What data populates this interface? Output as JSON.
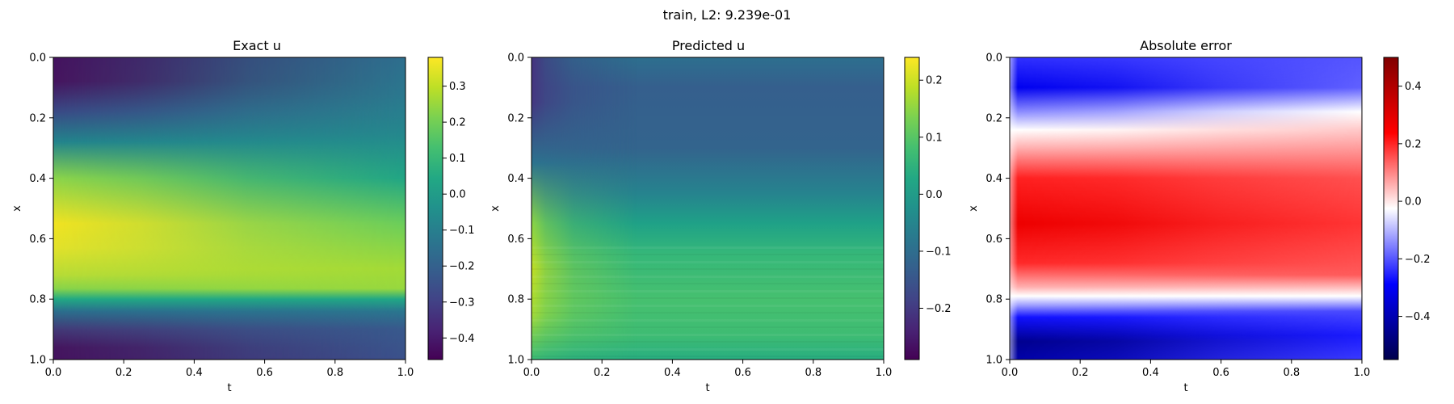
{
  "figure": {
    "suptitle": "train, L2: 9.239e-01"
  },
  "chart_data": [
    {
      "type": "heatmap",
      "title": "Exact u",
      "xlabel": "t",
      "ylabel": "x",
      "xlim": [
        0.0,
        1.0
      ],
      "ylim": [
        1.0,
        0.0
      ],
      "x_ticks": [
        "0.0",
        "0.2",
        "0.4",
        "0.6",
        "0.8",
        "1.0"
      ],
      "y_ticks": [
        "0.0",
        "0.2",
        "0.4",
        "0.6",
        "0.8",
        "1.0"
      ],
      "colormap": "viridis",
      "colorbar": {
        "range": [
          -0.46,
          0.38
        ],
        "ticks": [
          {
            "value": 0.3,
            "label": "0.3"
          },
          {
            "value": 0.2,
            "label": "0.2"
          },
          {
            "value": 0.1,
            "label": "0.1"
          },
          {
            "value": 0.0,
            "label": "0.0"
          },
          {
            "value": -0.1,
            "label": "−0.1"
          },
          {
            "value": -0.2,
            "label": "−0.2"
          },
          {
            "value": -0.3,
            "label": "−0.3"
          },
          {
            "value": -0.4,
            "label": "−0.4"
          }
        ]
      },
      "grid": false
    },
    {
      "type": "heatmap",
      "title": "Predicted u",
      "xlabel": "t",
      "ylabel": "x",
      "xlim": [
        0.0,
        1.0
      ],
      "ylim": [
        1.0,
        0.0
      ],
      "x_ticks": [
        "0.0",
        "0.2",
        "0.4",
        "0.6",
        "0.8",
        "1.0"
      ],
      "y_ticks": [
        "0.0",
        "0.2",
        "0.4",
        "0.6",
        "0.8",
        "1.0"
      ],
      "colormap": "viridis",
      "colorbar": {
        "range": [
          -0.29,
          0.24
        ],
        "ticks": [
          {
            "value": 0.2,
            "label": "0.2"
          },
          {
            "value": 0.1,
            "label": "0.1"
          },
          {
            "value": 0.0,
            "label": "0.0"
          },
          {
            "value": -0.1,
            "label": "−0.1"
          },
          {
            "value": -0.2,
            "label": "−0.2"
          }
        ]
      },
      "grid": false
    },
    {
      "type": "heatmap",
      "title": "Absolute error",
      "xlabel": "t",
      "ylabel": "x",
      "xlim": [
        0.0,
        1.0
      ],
      "ylim": [
        1.0,
        0.0
      ],
      "x_ticks": [
        "0.0",
        "0.2",
        "0.4",
        "0.6",
        "0.8",
        "1.0"
      ],
      "y_ticks": [
        "0.0",
        "0.2",
        "0.4",
        "0.6",
        "0.8",
        "1.0"
      ],
      "colormap": "seismic",
      "colorbar": {
        "range": [
          -0.55,
          0.5
        ],
        "ticks": [
          {
            "value": 0.4,
            "label": "0.4"
          },
          {
            "value": 0.2,
            "label": "0.2"
          },
          {
            "value": 0.0,
            "label": "0.0"
          },
          {
            "value": -0.2,
            "label": "−0.2"
          },
          {
            "value": -0.4,
            "label": "−0.4"
          }
        ]
      },
      "grid": false
    }
  ]
}
